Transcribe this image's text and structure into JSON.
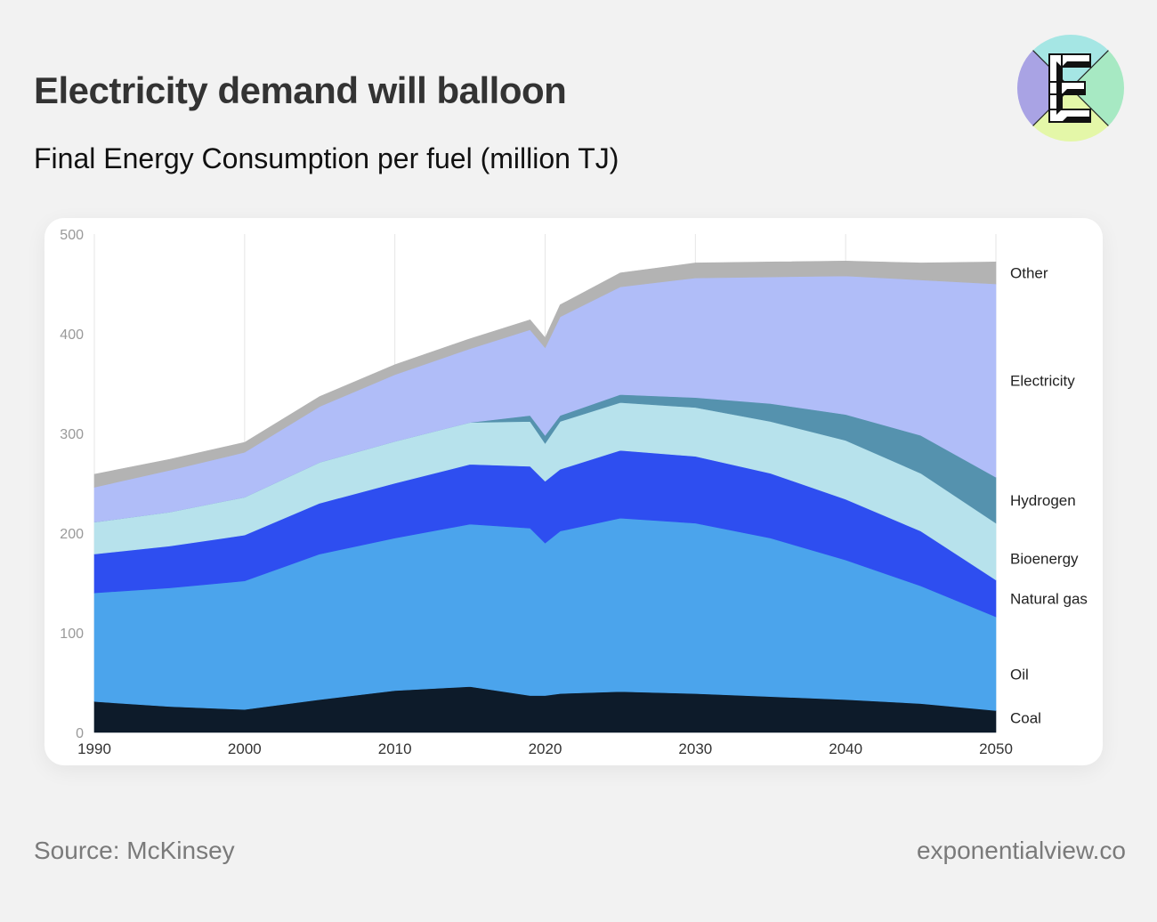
{
  "title": "Electricity demand will balloon",
  "subtitle": "Final Energy Consumption per fuel (million TJ)",
  "source": "Source: McKinsey",
  "website": "exponentialview.co",
  "logo": {
    "letter": "E",
    "icon": "exponential-view-logo"
  },
  "chart_data": {
    "type": "area",
    "stacked": true,
    "title": "",
    "xlabel": "",
    "ylabel": "",
    "x": [
      1990,
      1995,
      2000,
      2005,
      2010,
      2015,
      2019,
      2020,
      2021,
      2025,
      2030,
      2035,
      2040,
      2045,
      2050
    ],
    "xticks": [
      1990,
      2000,
      2010,
      2020,
      2030,
      2040,
      2050
    ],
    "ylim": [
      0,
      500
    ],
    "yticks": [
      0,
      100,
      200,
      300,
      400,
      500
    ],
    "grid": "vertical",
    "legend": "right labels",
    "series": [
      {
        "name": "Coal",
        "color": "#0d1b2a",
        "values": [
          31,
          26,
          23,
          33,
          42,
          46,
          37,
          37,
          39,
          41,
          39,
          36,
          33,
          29,
          22
        ]
      },
      {
        "name": "Oil",
        "color": "#4ba4ec",
        "values": [
          109,
          119,
          129,
          146,
          153,
          163,
          168,
          153,
          163,
          174,
          171,
          159,
          140,
          118,
          94
        ]
      },
      {
        "name": "Natural gas",
        "color": "#2e4ef0",
        "values": [
          39,
          42,
          46,
          51,
          55,
          60,
          62,
          62,
          62,
          68,
          67,
          65,
          61,
          55,
          37
        ]
      },
      {
        "name": "Bioenergy",
        "color": "#b7e2ec",
        "values": [
          32,
          34,
          38,
          41,
          42,
          42,
          45,
          38,
          48,
          48,
          49,
          52,
          59,
          58,
          57
        ]
      },
      {
        "name": "Hydrogen",
        "color": "#5592ae",
        "values": [
          0,
          0,
          0,
          0,
          0,
          0,
          6,
          8,
          6,
          8,
          10,
          18,
          26,
          38,
          46
        ]
      },
      {
        "name": "Electricity",
        "color": "#b0bdf8",
        "values": [
          35,
          42,
          45,
          56,
          67,
          74,
          86,
          88,
          99,
          108,
          120,
          127,
          139,
          156,
          194
        ]
      },
      {
        "name": "Other",
        "color": "#b3b3b3",
        "values": [
          13,
          11,
          10,
          10,
          10,
          10,
          10,
          10,
          12,
          14,
          15,
          15,
          15,
          17,
          22
        ]
      }
    ]
  }
}
